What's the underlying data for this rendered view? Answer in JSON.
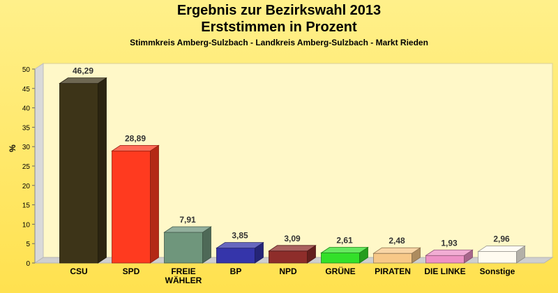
{
  "chart_data": {
    "type": "bar",
    "title": "Ergebnis zur Bezirkswahl 2013",
    "subtitle": "Erststimmen in Prozent",
    "subtitle2": "Stimmkreis Amberg-Sulzbach - Landkreis Amberg-Sulzbach - Markt Rieden",
    "xlabel": "",
    "ylabel": "%",
    "ylim": [
      0,
      50
    ],
    "yticks": [
      0,
      5,
      10,
      15,
      20,
      25,
      30,
      35,
      40,
      45,
      50
    ],
    "categories": [
      "CSU",
      "SPD",
      "FREIE WÄHLER",
      "BP",
      "NPD",
      "GRÜNE",
      "PIRATEN",
      "DIE LINKE",
      "Sonstige"
    ],
    "category_lines": [
      [
        "CSU"
      ],
      [
        "SPD"
      ],
      [
        "FREIE",
        "WÄHLER"
      ],
      [
        "BP"
      ],
      [
        "NPD"
      ],
      [
        "GRÜNE"
      ],
      [
        "PIRATEN"
      ],
      [
        "DIE LINKE"
      ],
      [
        "Sonstige"
      ]
    ],
    "values": [
      46.29,
      28.89,
      7.91,
      3.85,
      3.09,
      2.61,
      2.48,
      1.93,
      2.96
    ],
    "labels": [
      "46,29",
      "28,89",
      "7,91",
      "3,85",
      "3,09",
      "2,61",
      "2,48",
      "1,93",
      "2,96"
    ],
    "colors": [
      "#3d3418",
      "#ff3a1f",
      "#6f967c",
      "#3535aa",
      "#8e2d2a",
      "#33e02a",
      "#f7c888",
      "#ee92c6",
      "#fffbf0"
    ]
  }
}
